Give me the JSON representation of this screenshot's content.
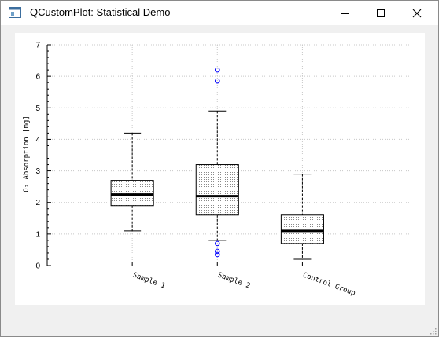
{
  "window": {
    "title": "QCustomPlot: Statistical Demo",
    "icon": "qt-app-icon"
  },
  "window_controls": [
    "minimize-icon",
    "maximize-icon",
    "close-icon"
  ],
  "colors": {
    "titlebar": "#ffffff",
    "client_bg": "#f0f0f0",
    "plot_bg": "#ffffff",
    "grid": "#c8c8c8",
    "box_outline": "#000000",
    "box_fill_pattern": "#9a9a9a",
    "median": "#000000",
    "outlier": "#0000ff"
  },
  "chart_data": {
    "type": "boxplot",
    "title": "",
    "xlabel": "",
    "ylabel": "O₂ Absorption [mg]",
    "ylim": [
      0,
      7
    ],
    "y_ticks": [
      0,
      1,
      2,
      3,
      4,
      5,
      6,
      7
    ],
    "x_ticks": [
      1,
      2,
      3
    ],
    "categories": [
      "Sample 1",
      "Sample 2",
      "Control Group"
    ],
    "grid": true,
    "series": [
      {
        "category": "Sample 1",
        "min": 1.1,
        "q1": 1.9,
        "median": 2.25,
        "q3": 2.7,
        "max": 4.2,
        "outliers": []
      },
      {
        "category": "Sample 2",
        "min": 0.8,
        "q1": 1.6,
        "median": 2.2,
        "q3": 3.2,
        "max": 4.9,
        "outliers": [
          0.7,
          0.45,
          0.35,
          5.85,
          6.2
        ]
      },
      {
        "category": "Control Group",
        "min": 0.2,
        "q1": 0.7,
        "median": 1.1,
        "q3": 1.6,
        "max": 2.9,
        "outliers": []
      }
    ]
  }
}
